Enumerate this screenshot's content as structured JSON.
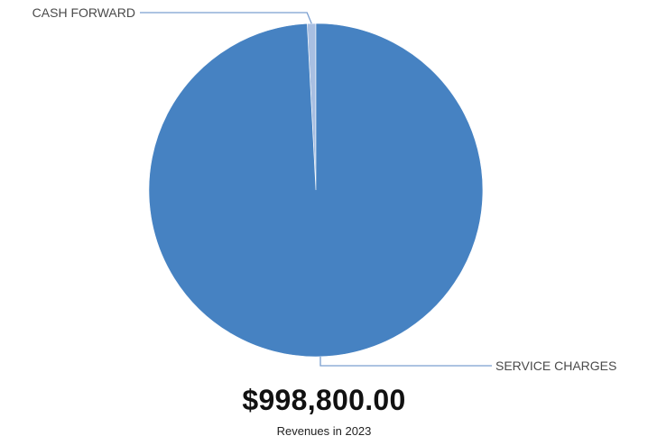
{
  "chart_data": {
    "type": "pie",
    "slices": [
      {
        "label": "CASH FORWARD",
        "value": 8300,
        "color": "#a8bfe2"
      },
      {
        "label": "SERVICE CHARGES",
        "value": 990500,
        "color": "#4682c2"
      }
    ]
  },
  "summary": {
    "total": "$998,800.00",
    "caption": "Revenues in 2023"
  },
  "colors": {
    "leader_line": "#7a9fd0",
    "label_text": "#4a4a4a"
  }
}
